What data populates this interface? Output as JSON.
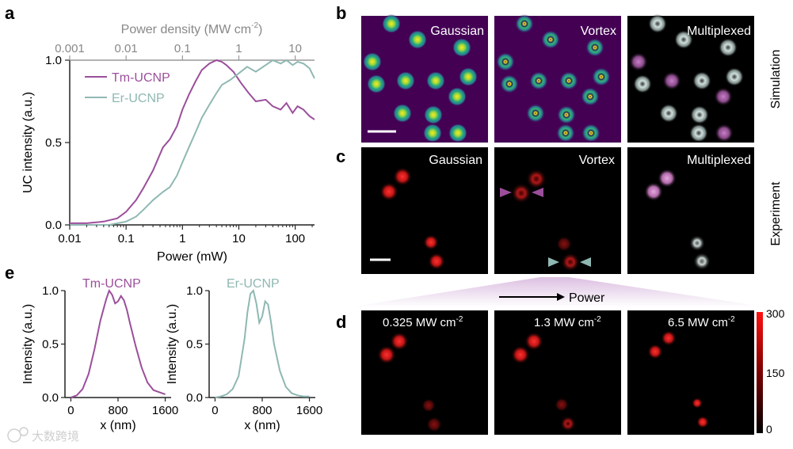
{
  "panel_labels": {
    "a": "a",
    "b": "b",
    "c": "c",
    "d": "d",
    "e": "e"
  },
  "colors": {
    "tm": "#9b4f9b",
    "er": "#8fb8b2",
    "axis": "#222222",
    "top_axis": "#888888",
    "scale_bg": "#000000"
  },
  "panel_b": {
    "titles": [
      "Gaussian",
      "Vortex",
      "Multiplexed"
    ],
    "side_label": "Simulation"
  },
  "panel_c": {
    "titles": [
      "Gaussian",
      "Vortex",
      "Multiplexed"
    ],
    "side_label": "Experiment"
  },
  "panel_d": {
    "arrow_label": "Power",
    "powers": [
      {
        "value": "0.325 MW cm",
        "exp": "-2"
      },
      {
        "value": "1.3 MW cm",
        "exp": "-2"
      },
      {
        "value": "6.5 MW cm",
        "exp": "-2"
      }
    ],
    "colorbar_ticks": [
      "300",
      "150",
      "0"
    ]
  },
  "watermark": "大数跨境",
  "chart_data": [
    {
      "id": "panel-a",
      "type": "line",
      "title": "",
      "xlabel": "Power (mW)",
      "ylabel": "UC intensity (a.u.)",
      "x2label": "Power density (MW cm",
      "x2label_exp": "-2",
      "x2label_close": ")",
      "xscale": "log",
      "xlim": [
        0.01,
        220
      ],
      "ylim": [
        0,
        1.0
      ],
      "xticks": [
        "0.01",
        "0.1",
        "1",
        "10",
        "100"
      ],
      "yticks": [
        "0.0",
        "0.5",
        "1.0"
      ],
      "x2ticks": [
        "0.001",
        "0.01",
        "0.1",
        "1",
        "10"
      ],
      "legend": "top-left",
      "series": [
        {
          "name": "Tm-UCNP",
          "color": "#9b4f9b",
          "x": [
            0.01,
            0.02,
            0.04,
            0.07,
            0.1,
            0.15,
            0.2,
            0.3,
            0.45,
            0.6,
            0.8,
            1,
            1.3,
            1.7,
            2.2,
            3,
            4,
            5,
            6,
            8,
            11,
            15,
            20,
            30,
            40,
            55,
            70,
            90,
            110,
            140,
            180,
            220
          ],
          "y": [
            0.01,
            0.01,
            0.02,
            0.04,
            0.08,
            0.15,
            0.22,
            0.33,
            0.47,
            0.52,
            0.6,
            0.7,
            0.79,
            0.87,
            0.94,
            0.98,
            1.0,
            0.99,
            0.97,
            0.93,
            0.86,
            0.8,
            0.75,
            0.76,
            0.72,
            0.7,
            0.74,
            0.68,
            0.72,
            0.7,
            0.66,
            0.64
          ]
        },
        {
          "name": "Er-UCNP",
          "color": "#8fb8b2",
          "x": [
            0.01,
            0.05,
            0.1,
            0.15,
            0.2,
            0.3,
            0.45,
            0.6,
            0.8,
            1,
            1.3,
            1.7,
            2.2,
            3,
            4,
            5,
            7,
            10,
            14,
            20,
            30,
            40,
            55,
            70,
            90,
            110,
            140,
            180,
            220
          ],
          "y": [
            0.0,
            0.0,
            0.02,
            0.05,
            0.09,
            0.15,
            0.2,
            0.23,
            0.3,
            0.38,
            0.47,
            0.56,
            0.65,
            0.73,
            0.8,
            0.85,
            0.88,
            0.92,
            0.96,
            0.93,
            0.97,
            1.0,
            0.98,
            1.0,
            0.97,
            0.99,
            0.98,
            0.95,
            0.89
          ]
        }
      ]
    },
    {
      "id": "panel-e-tm",
      "type": "line",
      "title": "Tm-UCNP",
      "xlabel": "x (nm)",
      "ylabel": "Intensity (a.u.)",
      "xlim": [
        -100,
        1700
      ],
      "ylim": [
        0,
        1.0
      ],
      "xticks": [
        "0",
        "800",
        "1600"
      ],
      "yticks": [
        "0.0",
        "0.5",
        "1.0"
      ],
      "series": [
        {
          "name": "Tm-UCNP",
          "color": "#9b4f9b",
          "x": [
            0,
            100,
            200,
            300,
            400,
            500,
            600,
            650,
            700,
            750,
            800,
            850,
            900,
            950,
            1000,
            1100,
            1200,
            1300,
            1400,
            1500,
            1600
          ],
          "y": [
            0.0,
            0.02,
            0.08,
            0.22,
            0.45,
            0.72,
            0.92,
            1.0,
            0.96,
            0.88,
            0.9,
            0.95,
            0.91,
            0.82,
            0.7,
            0.48,
            0.28,
            0.14,
            0.07,
            0.05,
            0.03
          ]
        }
      ]
    },
    {
      "id": "panel-e-er",
      "type": "line",
      "title": "Er-UCNP",
      "xlabel": "x (nm)",
      "ylabel": "Intensity (a.u.)",
      "xlim": [
        -100,
        1700
      ],
      "ylim": [
        0,
        1.0
      ],
      "xticks": [
        "0",
        "800",
        "1600"
      ],
      "yticks": [
        "0.0",
        "0.5",
        "1.0"
      ],
      "series": [
        {
          "name": "Er-UCNP",
          "color": "#8fb8b2",
          "x": [
            0,
            100,
            200,
            300,
            400,
            500,
            550,
            600,
            650,
            700,
            750,
            800,
            850,
            900,
            950,
            1000,
            1100,
            1200,
            1300,
            1400,
            1500,
            1600
          ],
          "y": [
            0.0,
            0.01,
            0.03,
            0.08,
            0.2,
            0.55,
            0.8,
            0.97,
            1.0,
            0.88,
            0.7,
            0.76,
            0.9,
            0.87,
            0.7,
            0.5,
            0.25,
            0.1,
            0.04,
            0.02,
            0.01,
            0.01
          ]
        }
      ]
    }
  ]
}
